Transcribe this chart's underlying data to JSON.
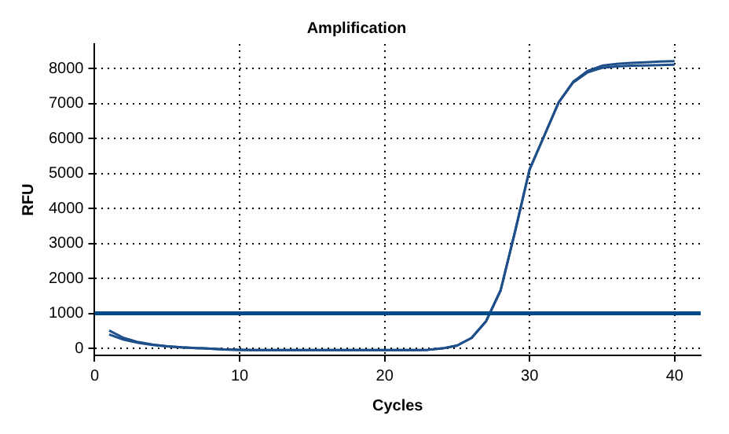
{
  "chart_data": {
    "type": "line",
    "title": "Amplification",
    "xlabel": "Cycles",
    "ylabel": "RFU",
    "x": [
      1,
      2,
      3,
      4,
      5,
      6,
      7,
      8,
      9,
      10,
      11,
      12,
      13,
      14,
      15,
      16,
      17,
      18,
      19,
      20,
      21,
      22,
      23,
      24,
      25,
      26,
      27,
      28,
      29,
      30,
      31,
      32,
      33,
      34,
      35,
      36,
      37,
      38,
      39,
      40
    ],
    "series": [
      {
        "color": "#1f4f8a",
        "values": [
          510,
          300,
          180,
          110,
          60,
          30,
          10,
          -10,
          -30,
          -40,
          -50,
          -50,
          -50,
          -50,
          -50,
          -50,
          -50,
          -50,
          -50,
          -50,
          -50,
          -50,
          -40,
          0,
          80,
          300,
          780,
          1660,
          3350,
          5120,
          6070,
          7030,
          7620,
          7930,
          8080,
          8130,
          8160,
          8180,
          8200,
          8210
        ]
      },
      {
        "color": "#1f4f8a",
        "values": [
          400,
          250,
          160,
          100,
          60,
          30,
          10,
          -10,
          -30,
          -40,
          -50,
          -50,
          -50,
          -50,
          -50,
          -50,
          -50,
          -50,
          -50,
          -50,
          -50,
          -50,
          -40,
          0,
          80,
          300,
          780,
          1660,
          3350,
          5120,
          6070,
          7030,
          7600,
          7890,
          8020,
          8060,
          8080,
          8090,
          8100,
          8110
        ]
      }
    ],
    "xlim": [
      0,
      41.8
    ],
    "xticks": [
      0,
      10,
      20,
      30,
      40
    ],
    "ylim": [
      -200,
      8700
    ],
    "yticks": [
      0,
      1000,
      2000,
      3000,
      4000,
      5000,
      6000,
      7000,
      8000
    ],
    "ref_lines": [
      {
        "axis": "y",
        "value": 1000,
        "color": "#004a8c"
      }
    ],
    "grid": true,
    "legend": false,
    "marker": "none",
    "line_style": "solid"
  }
}
